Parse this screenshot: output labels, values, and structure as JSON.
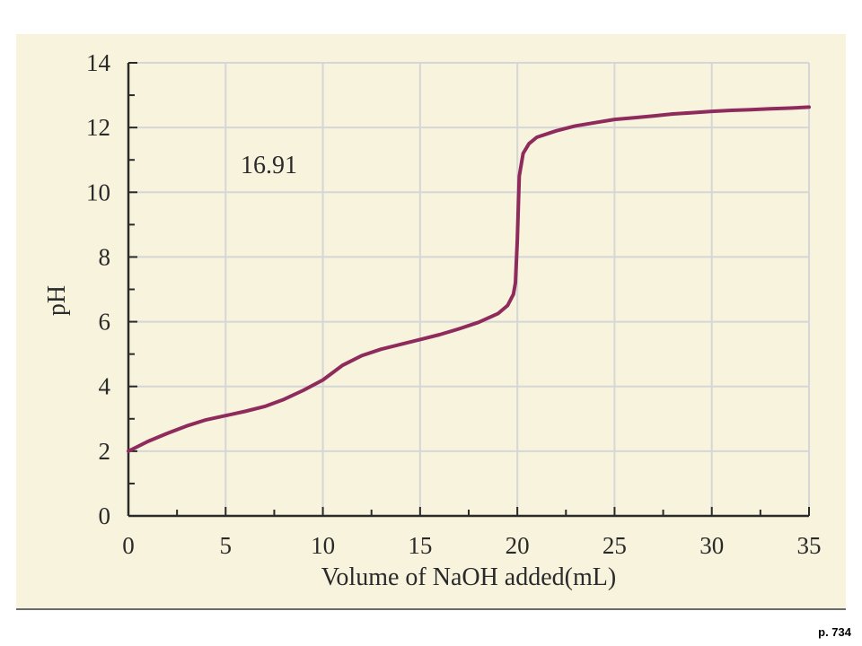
{
  "page": {
    "page_ref": "p. 734",
    "panel_color": "#f7f3dd"
  },
  "chart_data": {
    "type": "line",
    "title": "",
    "xlabel": "Volume of NaOH added(mL)",
    "ylabel": "pH",
    "xlim": [
      0,
      35
    ],
    "ylim": [
      0,
      14
    ],
    "xticks": [
      0,
      5,
      10,
      15,
      20,
      25,
      30,
      35
    ],
    "yticks": [
      0,
      2,
      4,
      6,
      8,
      10,
      12,
      14
    ],
    "x_minor_step": 2.5,
    "y_minor_step": 1,
    "grid": true,
    "annotation": "16.91",
    "curve_color": "#8f2b5c",
    "series": [
      {
        "x": [
          0,
          1,
          2,
          3,
          4,
          5,
          6,
          7,
          8,
          9,
          10,
          11,
          12,
          13,
          14,
          15,
          16,
          17,
          18,
          19,
          19.5,
          19.8,
          19.9,
          20,
          20.1,
          20.3,
          20.6,
          21,
          22,
          23,
          24,
          25,
          26,
          27,
          28,
          29,
          30,
          31,
          32,
          33,
          34,
          35
        ],
        "y": [
          2.0,
          2.3,
          2.55,
          2.78,
          2.97,
          3.1,
          3.23,
          3.38,
          3.6,
          3.88,
          4.2,
          4.65,
          4.95,
          5.15,
          5.3,
          5.45,
          5.6,
          5.78,
          5.98,
          6.25,
          6.5,
          6.85,
          7.2,
          8.5,
          10.5,
          11.2,
          11.5,
          11.7,
          11.9,
          12.05,
          12.15,
          12.25,
          12.3,
          12.36,
          12.42,
          12.46,
          12.5,
          12.53,
          12.55,
          12.58,
          12.6,
          12.63
        ]
      }
    ]
  }
}
